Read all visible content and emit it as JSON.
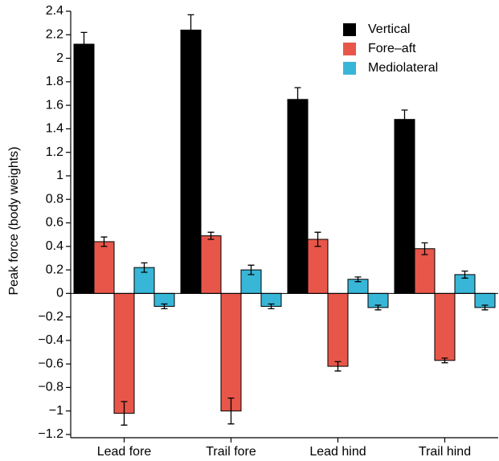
{
  "chart_data": {
    "type": "grouped-bar",
    "ylabel": "Peak force (body weights)",
    "categories": [
      "Lead fore",
      "Trail fore",
      "Lead hind",
      "Trail hind"
    ],
    "series": [
      {
        "name": "Vertical",
        "color": "#000000",
        "values": [
          2.12,
          2.24,
          1.65,
          1.48
        ],
        "errors": [
          0.1,
          0.13,
          0.1,
          0.08
        ]
      },
      {
        "name": "Fore–aft",
        "color": "#e8564a",
        "values": [
          0.44,
          0.49,
          0.46,
          0.38
        ],
        "errors": [
          0.04,
          0.03,
          0.06,
          0.05
        ],
        "negative_values": [
          -1.02,
          -1.0,
          -0.62,
          -0.57
        ],
        "negative_errors": [
          0.1,
          0.11,
          0.04,
          0.02
        ]
      },
      {
        "name": "Mediolateral",
        "color": "#38b6d8",
        "values": [
          0.22,
          0.2,
          0.12,
          0.16
        ],
        "errors": [
          0.04,
          0.04,
          0.02,
          0.03
        ],
        "negative_values": [
          -0.11,
          -0.11,
          -0.12,
          -0.12
        ],
        "negative_errors": [
          0.02,
          0.02,
          0.02,
          0.02
        ]
      }
    ],
    "ylim": [
      -1.2,
      2.4
    ],
    "yticks": [
      2.4,
      2.2,
      2,
      1.8,
      1.6,
      1.4,
      1.2,
      1,
      0.8,
      0.6,
      0.4,
      0.2,
      0,
      {
        "value": -0.2,
        "label": "−0.2"
      },
      {
        "value": -0.4,
        "label": "−0.4"
      },
      {
        "value": -0.6,
        "label": "−0.6"
      },
      {
        "value": -0.8,
        "label": "−0.8"
      },
      {
        "value": -1,
        "label": "−1"
      },
      {
        "value": -1.2,
        "label": "−1.2"
      }
    ],
    "legend": "top-right"
  }
}
